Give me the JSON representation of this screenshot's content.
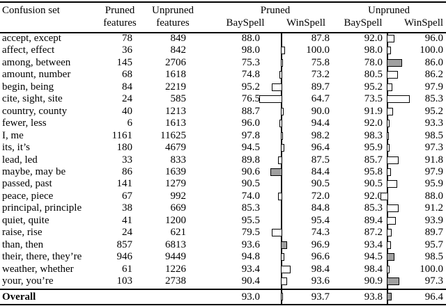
{
  "page": {
    "background": "#ffffff",
    "text_color": "#000000"
  },
  "colors": {
    "bar_fill_normal": "#ffffff",
    "bar_fill_significant": "#a0a0a0",
    "bar_border": "#000000",
    "rule": "#000000"
  },
  "layout_note": "bars show WinSpell minus BaySpell difference; filled (gray) bars are emphasized differences",
  "header": {
    "confusion_set": "Confusion set",
    "pruned_features_line1": "Pruned",
    "pruned_features_line2": "features",
    "unpruned_features_line1": "Unpruned",
    "unpruned_features_line2": "features",
    "pruned_group": "Pruned",
    "unpruned_group": "Unpruned",
    "pruned_bayspell": "BaySpell",
    "pruned_winspell": "WinSpell",
    "unpruned_bayspell": "BaySpell",
    "unpruned_winspell": "WinSpell"
  },
  "rows": [
    {
      "set": "accept, except",
      "pruned_features": "78",
      "unpruned_features": "849",
      "pruned_bayspell": "88.0",
      "pruned_winspell": "87.8",
      "pruned_significant": false,
      "unpruned_bayspell": "92.0",
      "unpruned_winspell": "96.0",
      "unpruned_significant": false
    },
    {
      "set": "affect, effect",
      "pruned_features": "36",
      "unpruned_features": "842",
      "pruned_bayspell": "98.0",
      "pruned_winspell": "100.0",
      "pruned_significant": false,
      "unpruned_bayspell": "98.0",
      "unpruned_winspell": "100.0",
      "unpruned_significant": false
    },
    {
      "set": "among, between",
      "pruned_features": "145",
      "unpruned_features": "2706",
      "pruned_bayspell": "75.3",
      "pruned_winspell": "75.8",
      "pruned_significant": false,
      "unpruned_bayspell": "78.0",
      "unpruned_winspell": "86.0",
      "unpruned_significant": true
    },
    {
      "set": "amount, number",
      "pruned_features": "68",
      "unpruned_features": "1618",
      "pruned_bayspell": "74.8",
      "pruned_winspell": "73.2",
      "pruned_significant": false,
      "unpruned_bayspell": "80.5",
      "unpruned_winspell": "86.2",
      "unpruned_significant": false
    },
    {
      "set": "begin, being",
      "pruned_features": "84",
      "unpruned_features": "2219",
      "pruned_bayspell": "95.2",
      "pruned_winspell": "89.7",
      "pruned_significant": false,
      "unpruned_bayspell": "95.2",
      "unpruned_winspell": "97.9",
      "unpruned_significant": false
    },
    {
      "set": "cite, sight, site",
      "pruned_features": "24",
      "unpruned_features": "585",
      "pruned_bayspell": "76.5",
      "pruned_winspell": "64.7",
      "pruned_significant": false,
      "unpruned_bayspell": "73.5",
      "unpruned_winspell": "85.3",
      "unpruned_significant": false
    },
    {
      "set": "country, county",
      "pruned_features": "40",
      "unpruned_features": "1213",
      "pruned_bayspell": "88.7",
      "pruned_winspell": "90.0",
      "pruned_significant": false,
      "unpruned_bayspell": "91.9",
      "unpruned_winspell": "95.2",
      "unpruned_significant": false
    },
    {
      "set": "fewer, less",
      "pruned_features": "6",
      "unpruned_features": "1613",
      "pruned_bayspell": "96.0",
      "pruned_winspell": "94.4",
      "pruned_significant": false,
      "unpruned_bayspell": "92.0",
      "unpruned_winspell": "93.3",
      "unpruned_significant": false
    },
    {
      "set": "I, me",
      "pruned_features": "1161",
      "unpruned_features": "11625",
      "pruned_bayspell": "97.8",
      "pruned_winspell": "98.2",
      "pruned_significant": false,
      "unpruned_bayspell": "98.3",
      "unpruned_winspell": "98.5",
      "unpruned_significant": false
    },
    {
      "set": "its, it’s",
      "pruned_features": "180",
      "unpruned_features": "4679",
      "pruned_bayspell": "94.5",
      "pruned_winspell": "96.4",
      "pruned_significant": false,
      "unpruned_bayspell": "95.9",
      "unpruned_winspell": "97.3",
      "unpruned_significant": false
    },
    {
      "set": "lead, led",
      "pruned_features": "33",
      "unpruned_features": "833",
      "pruned_bayspell": "89.8",
      "pruned_winspell": "87.5",
      "pruned_significant": false,
      "unpruned_bayspell": "85.7",
      "unpruned_winspell": "91.8",
      "unpruned_significant": false
    },
    {
      "set": "maybe, may be",
      "pruned_features": "86",
      "unpruned_features": "1639",
      "pruned_bayspell": "90.6",
      "pruned_winspell": "84.4",
      "pruned_significant": true,
      "unpruned_bayspell": "95.8",
      "unpruned_winspell": "97.9",
      "unpruned_significant": false
    },
    {
      "set": "passed, past",
      "pruned_features": "141",
      "unpruned_features": "1279",
      "pruned_bayspell": "90.5",
      "pruned_winspell": "90.5",
      "pruned_significant": false,
      "unpruned_bayspell": "90.5",
      "unpruned_winspell": "95.9",
      "unpruned_significant": false
    },
    {
      "set": "peace, piece",
      "pruned_features": "67",
      "unpruned_features": "992",
      "pruned_bayspell": "74.0",
      "pruned_winspell": "72.0",
      "pruned_significant": false,
      "unpruned_bayspell": "92.0",
      "unpruned_winspell": "88.0",
      "unpruned_significant": false
    },
    {
      "set": "principal, principle",
      "pruned_features": "38",
      "unpruned_features": "669",
      "pruned_bayspell": "85.3",
      "pruned_winspell": "84.8",
      "pruned_significant": false,
      "unpruned_bayspell": "85.3",
      "unpruned_winspell": "91.2",
      "unpruned_significant": false
    },
    {
      "set": "quiet, quite",
      "pruned_features": "41",
      "unpruned_features": "1200",
      "pruned_bayspell": "95.5",
      "pruned_winspell": "95.4",
      "pruned_significant": false,
      "unpruned_bayspell": "89.4",
      "unpruned_winspell": "93.9",
      "unpruned_significant": false
    },
    {
      "set": "raise, rise",
      "pruned_features": "24",
      "unpruned_features": "621",
      "pruned_bayspell": "79.5",
      "pruned_winspell": "74.3",
      "pruned_significant": false,
      "unpruned_bayspell": "87.2",
      "unpruned_winspell": "89.7",
      "unpruned_significant": false
    },
    {
      "set": "than, then",
      "pruned_features": "857",
      "unpruned_features": "6813",
      "pruned_bayspell": "93.6",
      "pruned_winspell": "96.9",
      "pruned_significant": true,
      "unpruned_bayspell": "93.4",
      "unpruned_winspell": "95.7",
      "unpruned_significant": false
    },
    {
      "set": "their, there, they’re",
      "pruned_features": "946",
      "unpruned_features": "9449",
      "pruned_bayspell": "94.8",
      "pruned_winspell": "96.6",
      "pruned_significant": false,
      "unpruned_bayspell": "94.5",
      "unpruned_winspell": "98.5",
      "unpruned_significant": true
    },
    {
      "set": "weather, whether",
      "pruned_features": "61",
      "unpruned_features": "1226",
      "pruned_bayspell": "93.4",
      "pruned_winspell": "98.4",
      "pruned_significant": false,
      "unpruned_bayspell": "98.4",
      "unpruned_winspell": "100.0",
      "unpruned_significant": false
    },
    {
      "set": "your, you’re",
      "pruned_features": "103",
      "unpruned_features": "2738",
      "pruned_bayspell": "90.4",
      "pruned_winspell": "93.6",
      "pruned_significant": false,
      "unpruned_bayspell": "90.9",
      "unpruned_winspell": "97.3",
      "unpruned_significant": true
    }
  ],
  "overall": {
    "label": "Overall",
    "pruned_bayspell": "93.0",
    "pruned_winspell": "93.7",
    "pruned_significant": false,
    "unpruned_bayspell": "93.8",
    "unpruned_winspell": "96.4",
    "unpruned_significant": true
  }
}
